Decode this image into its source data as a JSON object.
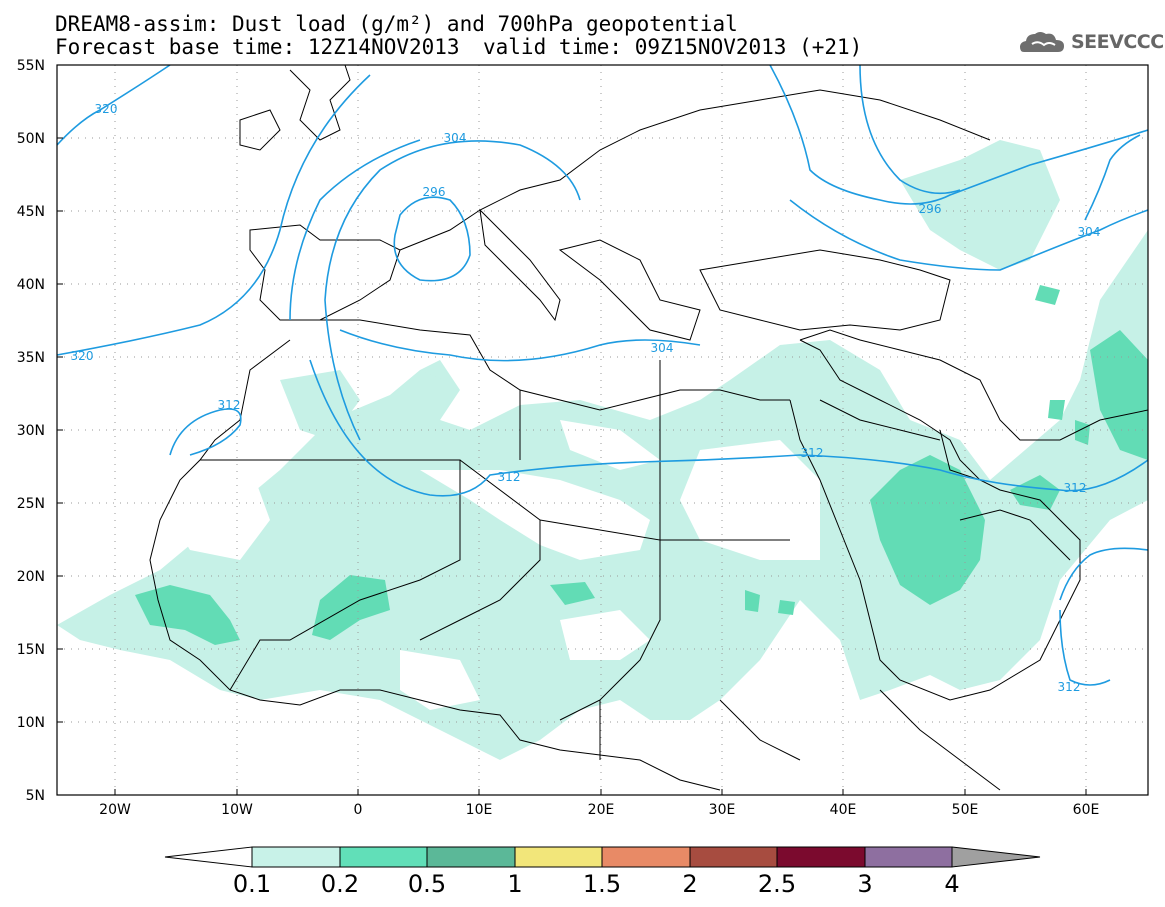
{
  "header": {
    "title_line1": "DREAM8-assim: Dust load (g/m²) and 700hPa geopotential",
    "base_time": "Forecast base time: 12Z14NOV2013",
    "valid_time": "valid time: 09Z15NOV2013 (+21)",
    "logo_text": "SEEVCCC"
  },
  "map": {
    "lat_labels": [
      "55N",
      "50N",
      "45N",
      "40N",
      "35N",
      "30N",
      "25N",
      "20N",
      "15N",
      "10N",
      "5N"
    ],
    "lon_labels": [
      "20W",
      "10W",
      "0",
      "10E",
      "20E",
      "30E",
      "40E",
      "50E",
      "60E"
    ],
    "contour_labels": [
      "320",
      "304",
      "296",
      "320",
      "312",
      "312",
      "304",
      "312",
      "296",
      "304",
      "312",
      "312"
    ],
    "contour_color": "#1e9be0",
    "dust_colors": {
      "low": "#c6f1e7",
      "mid": "#62dcb5"
    }
  },
  "colorbar": {
    "labels": [
      "0.1",
      "0.2",
      "0.5",
      "1",
      "1.5",
      "2",
      "2.5",
      "3",
      "4"
    ],
    "colors": [
      "#c8f2e8",
      "#61dfb8",
      "#5bb898",
      "#f2e67a",
      "#e88a66",
      "#a74c40",
      "#7b0a2e",
      "#8e6fa0",
      "#a0a0a0"
    ]
  }
}
